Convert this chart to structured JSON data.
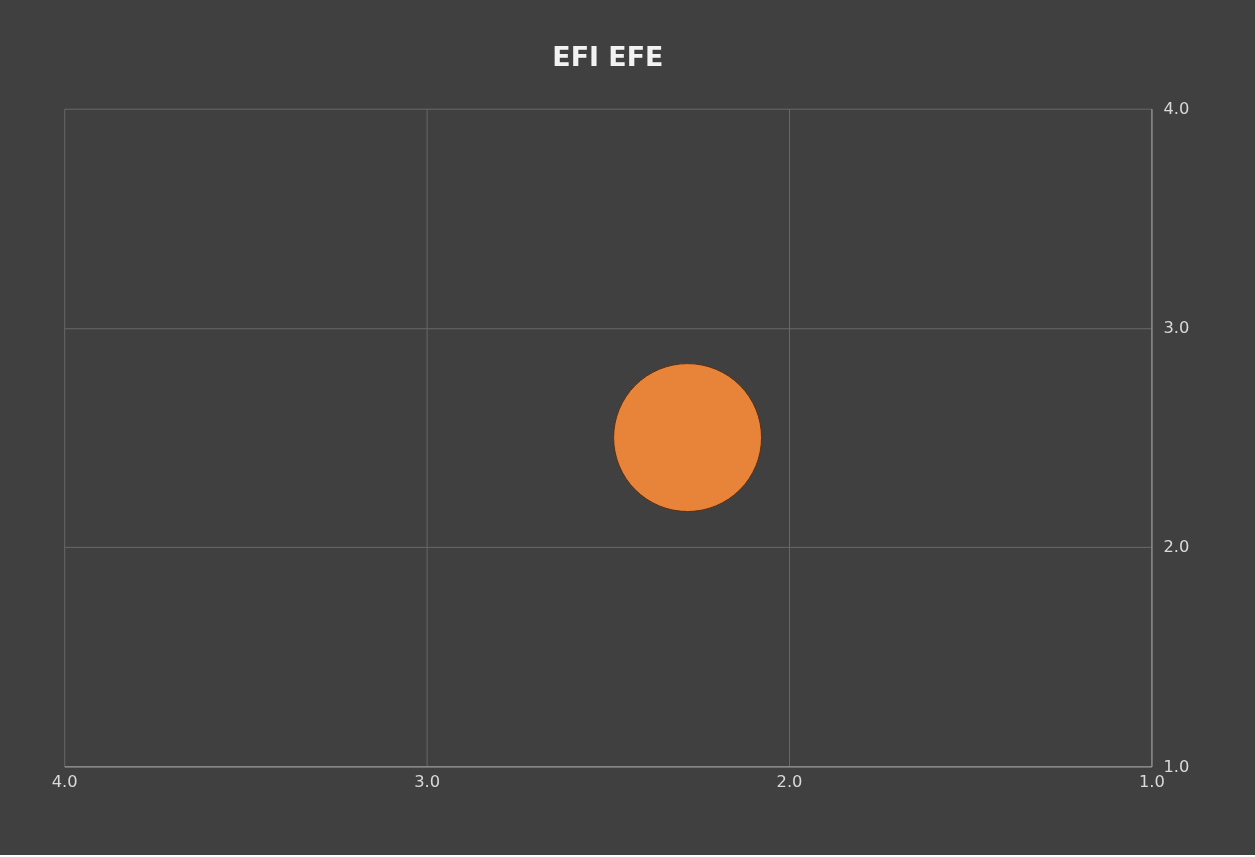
{
  "chart_data": {
    "type": "bubble",
    "title": "EFI EFE",
    "series": [
      {
        "color": "#e8833a",
        "x": [
          2.28
        ],
        "values": [
          2.5
        ],
        "sizes": [
          1
        ]
      }
    ],
    "xlim": [
      4.0,
      1.0
    ],
    "xticks": [
      {
        "value": 4,
        "label": "4.0"
      },
      {
        "value": 3,
        "label": "3.0"
      },
      {
        "value": 2,
        "label": "2.0"
      },
      {
        "value": 1,
        "label": "1.0"
      }
    ],
    "ylim": [
      1.0,
      4.0
    ],
    "yticks": [
      {
        "value": 1,
        "label": "1.0"
      },
      {
        "value": 2,
        "label": "2.0"
      },
      {
        "value": 3,
        "label": "3.0"
      },
      {
        "value": 4,
        "label": "4.0"
      }
    ],
    "grid": true,
    "legend": false
  }
}
